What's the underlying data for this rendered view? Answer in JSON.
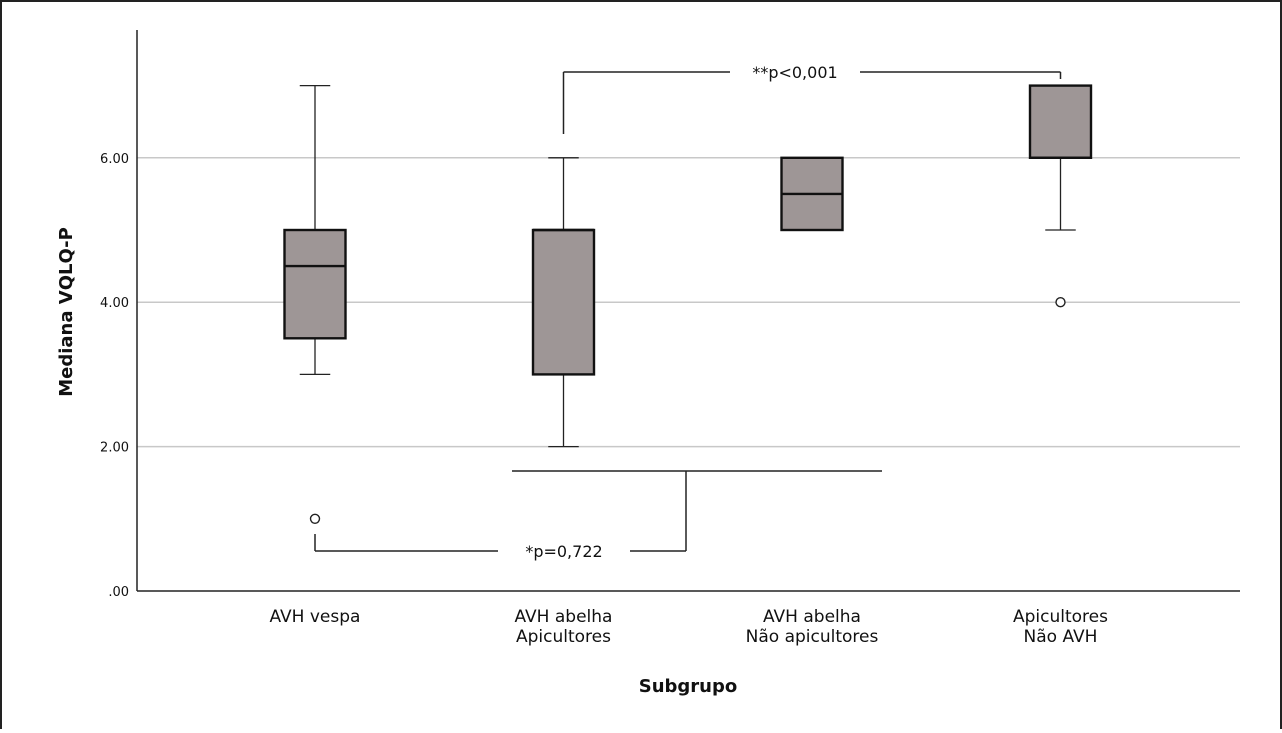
{
  "chart_data": {
    "type": "boxplot",
    "title": "",
    "xlabel": "Subgrupo",
    "ylabel": "Mediana VQLQ-P",
    "ylim": [
      0,
      7.9
    ],
    "grid": true,
    "yticks": [
      {
        "value": 0,
        "label": ".00"
      },
      {
        "value": 2,
        "label": "2.00"
      },
      {
        "value": 4,
        "label": "4.00"
      },
      {
        "value": 6,
        "label": "6.00"
      }
    ],
    "categories": [
      [
        "AVH vespa"
      ],
      [
        "AVH abelha",
        "Apicultores"
      ],
      [
        "AVH abelha",
        "Não apicultores"
      ],
      [
        "Apicultores",
        "Não AVH"
      ]
    ],
    "boxes": [
      {
        "whisker_low": 3,
        "q1": 3.5,
        "median": 4.5,
        "q3": 5,
        "whisker_high": 7,
        "outliers": [
          1
        ]
      },
      {
        "whisker_low": 2,
        "q1": 3,
        "median": 5,
        "q3": 5,
        "whisker_high": 6,
        "outliers": []
      },
      {
        "whisker_low": 5,
        "q1": 5,
        "median": 5.5,
        "q3": 6,
        "whisker_high": 6,
        "outliers": []
      },
      {
        "whisker_low": 5,
        "q1": 6,
        "median": 6,
        "q3": 7,
        "whisker_high": 7,
        "outliers": [
          4
        ]
      }
    ],
    "box_color": "#9e9696",
    "annotations": [
      {
        "text": "**p<0,001",
        "from_group": 1,
        "to_group": 3,
        "position": "top"
      },
      {
        "text": "*p=0,722",
        "from_group": 0,
        "to_group": 1,
        "position": "bottom"
      }
    ]
  }
}
